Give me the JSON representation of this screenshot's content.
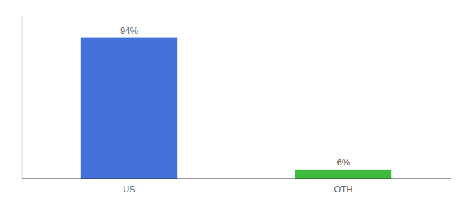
{
  "chart_data": {
    "type": "bar",
    "categories": [
      "US",
      "OTH"
    ],
    "values": [
      94,
      6
    ],
    "value_labels": [
      "94%",
      "6%"
    ],
    "colors": [
      "#4472db",
      "#3dbb3d"
    ],
    "ylim": [
      0,
      108
    ],
    "data_labels": true,
    "tick_labels": "x"
  }
}
